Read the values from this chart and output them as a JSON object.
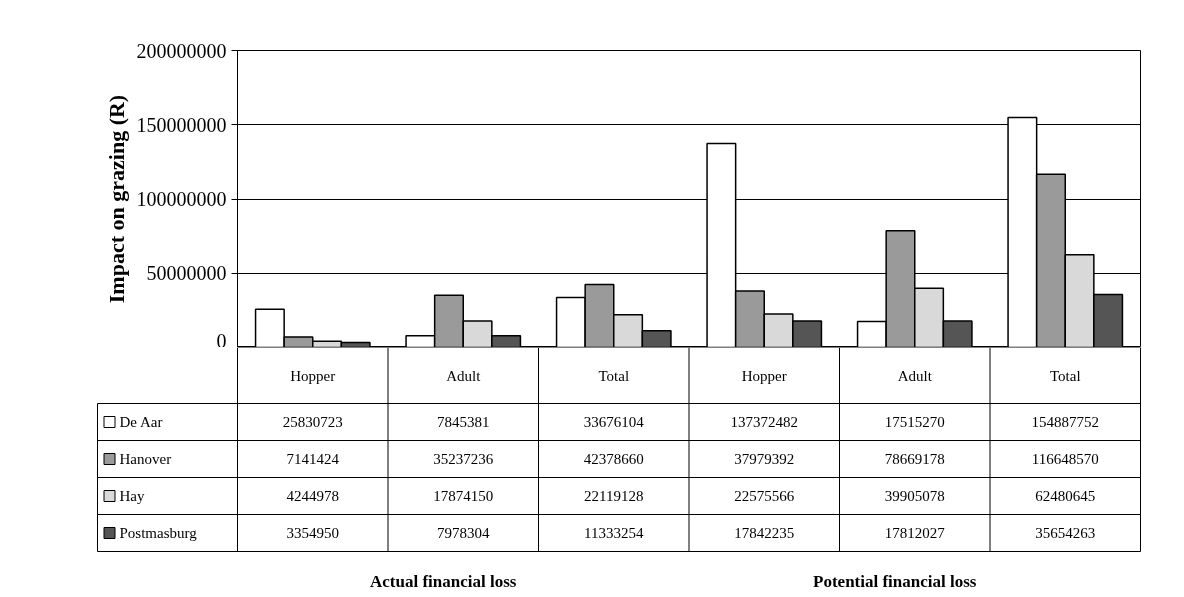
{
  "chart_data": {
    "type": "bar",
    "ylabel": "Impact on grazing (R)",
    "categories": [
      "Hopper",
      "Adult",
      "Total",
      "Hopper",
      "Adult",
      "Total"
    ],
    "series": [
      {
        "name": "De Aar",
        "color": "#ffffff",
        "values": [
          25830723,
          7845381,
          33676104,
          137372482,
          17515270,
          154887752
        ],
        "value_labels": [
          "25830723",
          "7845381",
          "33676104",
          "137372482",
          "17515270",
          "154887752"
        ]
      },
      {
        "name": "Hanover",
        "color": "#9a9a9a",
        "values": [
          7141424,
          35237236,
          42378660,
          37979392,
          78669178,
          116648570
        ],
        "value_labels": [
          "7141424",
          "35237236",
          "42378660",
          "37979392",
          "78669178",
          "116648570"
        ]
      },
      {
        "name": "Hay",
        "color": "#d9d9d9",
        "values": [
          4244978,
          17874150,
          22119128,
          22575566,
          39905078,
          62480645
        ],
        "value_labels": [
          "4244978",
          "17874150",
          "22119128",
          "22575566",
          "39905078",
          "62480645"
        ]
      },
      {
        "name": "Postmasburg",
        "color": "#555555",
        "values": [
          3354950,
          7978304,
          11333254,
          17842235,
          17812027,
          35654263
        ],
        "value_labels": [
          "3354950",
          "7978304",
          "11333254",
          "17842235",
          "17812027",
          "35654263"
        ]
      }
    ],
    "ylim": [
      0,
      200000000
    ],
    "yticks": [
      0,
      50000000,
      100000000,
      150000000,
      200000000
    ],
    "grid": "y",
    "legend": "bottom left",
    "annotations": [
      "Actual financial loss",
      "Potential financial loss"
    ]
  }
}
